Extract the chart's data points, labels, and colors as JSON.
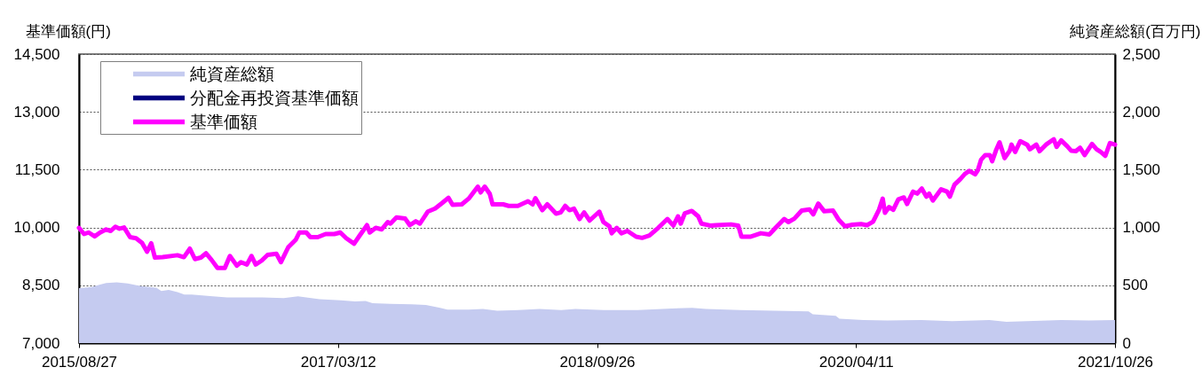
{
  "chart_data": {
    "type": "line",
    "ylabel": "基準価額(円)",
    "y2label": "純資産総額(百万円)",
    "xlim": [
      "2015-08-27",
      "2021-10-26"
    ],
    "xticks": [
      {
        "value": "2015-08-27",
        "label": "2015/08/27"
      },
      {
        "value": "2017-03-12",
        "label": "2017/03/12"
      },
      {
        "value": "2018-09-26",
        "label": "2018/09/26"
      },
      {
        "value": "2020-04-11",
        "label": "2020/04/11"
      },
      {
        "value": "2021-10-26",
        "label": "2021/10/26"
      }
    ],
    "ylim": [
      7000,
      14500
    ],
    "yticks": [
      {
        "value": 7000,
        "label": "7,000"
      },
      {
        "value": 8500,
        "label": "8,500"
      },
      {
        "value": 10000,
        "label": "10,000"
      },
      {
        "value": 11500,
        "label": "11,500"
      },
      {
        "value": 13000,
        "label": "13,000"
      },
      {
        "value": 14500,
        "label": "14,500"
      }
    ],
    "y2lim": [
      0,
      2500
    ],
    "y2ticks": [
      0,
      500,
      {
        "value": 1000,
        "label": "1,000"
      },
      {
        "value": 1500,
        "label": "1,500"
      },
      {
        "value": 2000,
        "label": "2,000"
      },
      {
        "value": 2500,
        "label": "2,500"
      }
    ],
    "grid": "y",
    "legend": "top left",
    "series": [
      {
        "name": "純資産総額",
        "type": "area",
        "axis": "y2",
        "color": "#c5cbf0",
        "x": [
          "2015-08-27",
          "2015-09-24",
          "2015-10-10",
          "2015-10-25",
          "2015-11-17",
          "2015-12-11",
          "2016-01-11",
          "2016-02-11",
          "2016-02-22",
          "2016-03-09",
          "2016-03-28",
          "2016-04-12",
          "2016-04-28",
          "2016-06-13",
          "2016-07-14",
          "2016-08-29",
          "2016-09-29",
          "2016-11-14",
          "2016-12-15",
          "2017-01-31",
          "2017-03-18",
          "2017-04-18",
          "2017-05-11",
          "2017-05-26",
          "2017-07-04",
          "2017-08-19",
          "2017-09-19",
          "2017-10-20",
          "2017-11-05",
          "2017-12-21",
          "2018-01-21",
          "2018-02-21",
          "2018-04-08",
          "2018-05-24",
          "2018-07-10",
          "2018-08-10",
          "2018-10-10",
          "2018-12-24",
          "2019-03-08",
          "2019-04-21",
          "2019-05-21",
          "2019-08-03",
          "2019-10-17",
          "2019-12-30",
          "2020-01-08",
          "2020-02-27",
          "2020-03-06",
          "2020-04-27",
          "2020-06-18",
          "2020-08-31",
          "2020-11-06",
          "2021-01-26",
          "2021-03-04",
          "2021-07-01",
          "2021-08-30",
          "2021-10-26"
        ],
        "values": [
          475,
          485,
          505,
          520,
          525,
          515,
          490,
          480,
          450,
          460,
          440,
          420,
          420,
          405,
          395,
          395,
          395,
          390,
          405,
          380,
          370,
          360,
          365,
          345,
          340,
          335,
          330,
          305,
          290,
          290,
          295,
          280,
          285,
          295,
          285,
          295,
          285,
          285,
          300,
          305,
          295,
          285,
          280,
          275,
          250,
          235,
          210,
          200,
          195,
          200,
          190,
          200,
          185,
          200,
          195,
          200
        ]
      },
      {
        "name": "分配金再投資基準価額",
        "color": "#000080"
      },
      {
        "name": "基準価額",
        "color": "#ff00ff",
        "x": [
          "2015-08-27",
          "2015-09-07",
          "2015-09-17",
          "2015-09-30",
          "2015-10-12",
          "2015-10-25",
          "2015-11-04",
          "2015-11-14",
          "2015-11-23",
          "2015-12-03",
          "2015-12-16",
          "2015-12-29",
          "2016-01-11",
          "2016-01-22",
          "2016-01-31",
          "2016-02-08",
          "2016-02-25",
          "2016-03-28",
          "2016-04-11",
          "2016-04-24",
          "2016-05-05",
          "2016-05-18",
          "2016-05-29",
          "2016-06-10",
          "2016-06-23",
          "2016-07-09",
          "2016-07-20",
          "2016-08-04",
          "2016-08-13",
          "2016-08-26",
          "2016-09-05",
          "2016-09-14",
          "2016-09-27",
          "2016-10-10",
          "2016-10-29",
          "2016-11-08",
          "2016-11-24",
          "2016-12-10",
          "2016-12-18",
          "2017-01-02",
          "2017-01-11",
          "2017-01-27",
          "2017-02-13",
          "2017-03-04",
          "2017-03-17",
          "2017-03-30",
          "2017-04-16",
          "2017-04-28",
          "2017-05-14",
          "2017-05-20",
          "2017-06-02",
          "2017-06-15",
          "2017-06-28",
          "2017-07-04",
          "2017-07-17",
          "2017-08-05",
          "2017-08-15",
          "2017-08-28",
          "2017-09-06",
          "2017-09-23",
          "2017-10-09",
          "2017-10-25",
          "2017-11-07",
          "2017-11-16",
          "2017-12-06",
          "2017-12-22",
          "2018-01-10",
          "2018-01-16",
          "2018-01-25",
          "2018-02-05",
          "2018-02-11",
          "2018-03-06",
          "2018-03-18",
          "2018-04-07",
          "2018-04-29",
          "2018-05-09",
          "2018-05-15",
          "2018-05-30",
          "2018-06-10",
          "2018-06-29",
          "2018-07-09",
          "2018-07-19",
          "2018-07-28",
          "2018-08-07",
          "2018-08-19",
          "2018-08-29",
          "2018-09-10",
          "2018-10-01",
          "2018-10-10",
          "2018-10-23",
          "2018-10-28",
          "2018-11-08",
          "2018-11-18",
          "2018-12-01",
          "2018-12-20",
          "2019-01-02",
          "2019-01-18",
          "2019-02-06",
          "2019-02-26",
          "2019-03-11",
          "2019-03-21",
          "2019-03-27",
          "2019-04-05",
          "2019-04-20",
          "2019-05-04",
          "2019-05-11",
          "2019-05-30",
          "2019-06-12",
          "2019-07-14",
          "2019-07-30",
          "2019-08-06",
          "2019-08-25",
          "2019-09-17",
          "2019-10-06",
          "2019-10-19",
          "2019-11-07",
          "2019-11-16",
          "2019-11-29",
          "2019-12-15",
          "2020-01-01",
          "2020-01-09",
          "2020-01-20",
          "2020-02-02",
          "2020-02-21",
          "2020-03-05",
          "2020-03-18",
          "2020-04-03",
          "2020-04-22",
          "2020-05-05",
          "2020-05-18",
          "2020-05-31",
          "2020-06-08",
          "2020-06-13",
          "2020-06-22",
          "2020-07-01",
          "2020-07-12",
          "2020-07-24",
          "2020-07-31",
          "2020-08-13",
          "2020-08-22",
          "2020-09-01",
          "2020-09-11",
          "2020-09-17",
          "2020-09-25",
          "2020-10-13",
          "2020-10-26",
          "2020-11-01",
          "2020-11-11",
          "2020-11-24",
          "2020-12-03",
          "2020-12-13",
          "2020-12-26",
          "2021-01-01",
          "2021-01-08",
          "2021-01-17",
          "2021-01-27",
          "2021-02-01",
          "2021-02-09",
          "2021-02-17",
          "2021-02-28",
          "2021-03-11",
          "2021-03-15",
          "2021-03-23",
          "2021-04-03",
          "2021-04-18",
          "2021-04-24",
          "2021-05-08",
          "2021-05-15",
          "2021-05-29",
          "2021-06-15",
          "2021-06-21",
          "2021-07-01",
          "2021-07-14",
          "2021-07-23",
          "2021-08-02",
          "2021-08-11",
          "2021-08-21",
          "2021-09-06",
          "2021-09-16",
          "2021-09-25",
          "2021-10-05",
          "2021-10-15",
          "2021-10-26"
        ],
        "values": [
          9990,
          9830,
          9870,
          9770,
          9870,
          9950,
          9910,
          10020,
          9970,
          10000,
          9750,
          9720,
          9600,
          9370,
          9590,
          9220,
          9230,
          9280,
          9230,
          9450,
          9180,
          9220,
          9330,
          9160,
          8950,
          8950,
          9260,
          9010,
          9100,
          9040,
          9260,
          9040,
          9140,
          9290,
          9320,
          9100,
          9490,
          9680,
          9870,
          9870,
          9750,
          9750,
          9830,
          9830,
          9870,
          9720,
          9580,
          9790,
          10060,
          9870,
          9990,
          9950,
          10140,
          10100,
          10260,
          10230,
          10060,
          10160,
          10100,
          10410,
          10490,
          10640,
          10770,
          10590,
          10600,
          10760,
          11060,
          10910,
          11060,
          10870,
          10600,
          10600,
          10560,
          10560,
          10680,
          10600,
          10760,
          10450,
          10600,
          10360,
          10390,
          10560,
          10450,
          10490,
          10220,
          10390,
          10180,
          10410,
          10140,
          10030,
          9850,
          9990,
          9850,
          9910,
          9760,
          9730,
          9790,
          9990,
          10220,
          10050,
          10290,
          10100,
          10370,
          10430,
          10290,
          10100,
          10050,
          10060,
          10080,
          10050,
          9760,
          9760,
          9850,
          9820,
          9990,
          10220,
          10140,
          10230,
          10440,
          10470,
          10340,
          10620,
          10420,
          10440,
          10190,
          10030,
          10070,
          10090,
          10060,
          10150,
          10460,
          10750,
          10380,
          10530,
          10460,
          10730,
          10780,
          10610,
          10930,
          10880,
          11010,
          10800,
          10880,
          10700,
          10990,
          10930,
          10800,
          11110,
          11260,
          11380,
          11470,
          11380,
          11490,
          11760,
          11880,
          11880,
          11720,
          11990,
          12210,
          11800,
          11990,
          12150,
          11960,
          12240,
          12150,
          12030,
          12150,
          11980,
          12150,
          12290,
          12090,
          12260,
          12110,
          11990,
          11980,
          12070,
          11880,
          12170,
          12030,
          11960,
          11860,
          12190,
          12150
        ]
      }
    ]
  }
}
